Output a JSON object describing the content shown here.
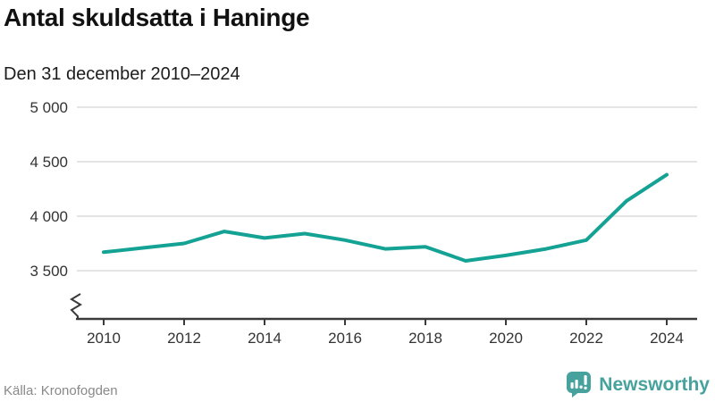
{
  "header": {
    "title": "Antal skuldsatta i Haninge",
    "subtitle": "Den 31 december 2010–2024"
  },
  "footer": {
    "source": "Källa: Kronofogden",
    "brand": "Newsworthy"
  },
  "colors": {
    "line": "#14a294",
    "brand": "#47a29d",
    "grid": "#e4e4e4",
    "axis": "#3a3a3a"
  },
  "chart_data": {
    "type": "line",
    "title": "Antal skuldsatta i Haninge",
    "subtitle": "Den 31 december 2010–2024",
    "series_name": "Antal skuldsatta",
    "x": [
      2010,
      2011,
      2012,
      2013,
      2014,
      2015,
      2016,
      2017,
      2018,
      2019,
      2020,
      2021,
      2022,
      2023,
      2024
    ],
    "values": [
      3670,
      3710,
      3750,
      3860,
      3800,
      3840,
      3780,
      3700,
      3720,
      3590,
      3640,
      3700,
      3780,
      4140,
      4380
    ],
    "ylim": [
      3500,
      5000
    ],
    "y_axis_break": true,
    "grid": "horizontal",
    "legend": "none",
    "yticks": [
      "3 500",
      "4 000",
      "4 500",
      "5 000"
    ],
    "xticks": [
      "2010",
      "2012",
      "2014",
      "2016",
      "2018",
      "2020",
      "2022",
      "2024"
    ],
    "source": "Källa: Kronofogden"
  }
}
